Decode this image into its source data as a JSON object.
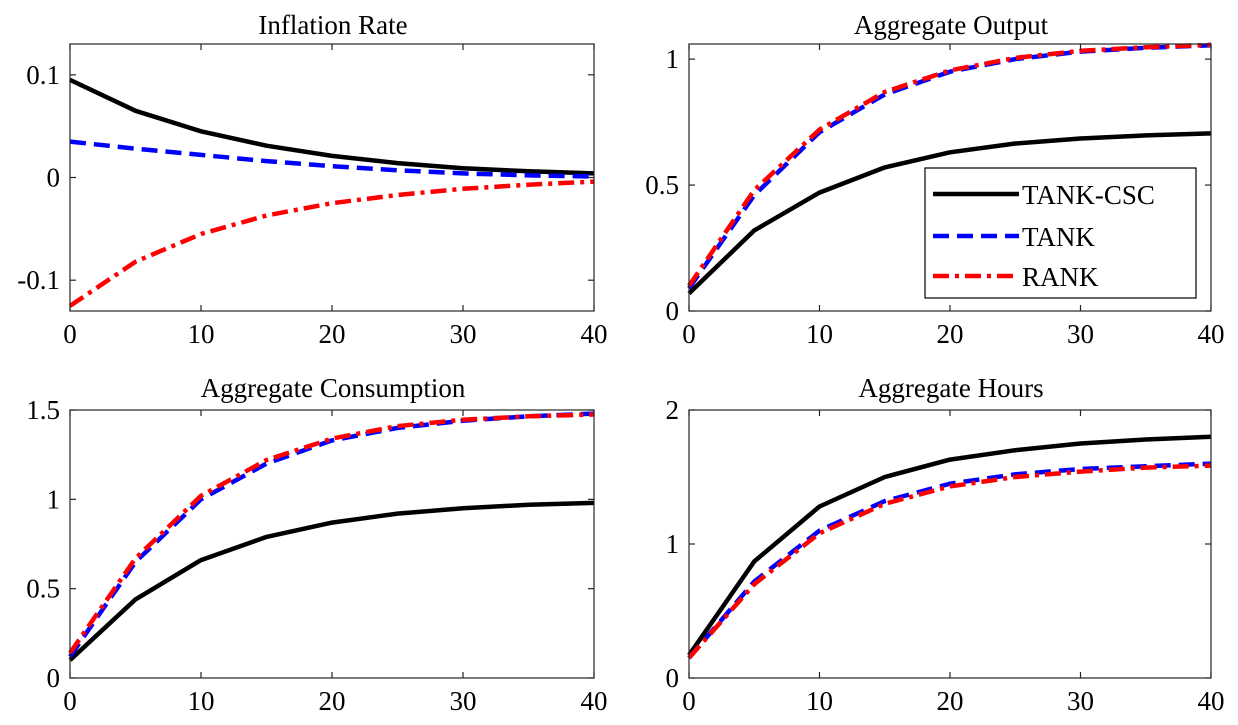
{
  "figure": {
    "background": "#ffffff",
    "legend": {
      "panel": 1,
      "placement": "lower-right",
      "entries": [
        {
          "label": "TANK-CSC",
          "color": "#000000",
          "style": "solid"
        },
        {
          "label": "TANK",
          "color": "#0000ff",
          "style": "dashed"
        },
        {
          "label": "RANK",
          "color": "#ff0000",
          "style": "dash-dot"
        }
      ]
    }
  },
  "chart_data": [
    {
      "type": "line",
      "title": "Inflation Rate",
      "xlabel": "",
      "ylabel": "",
      "xlim": [
        0,
        40
      ],
      "ylim": [
        -0.13,
        0.13
      ],
      "xticks": [
        0,
        10,
        20,
        30,
        40
      ],
      "xtick_labels": [
        "0",
        "10",
        "20",
        "30",
        "40"
      ],
      "yticks": [
        -0.1,
        0,
        0.1
      ],
      "ytick_labels": [
        "-0.1",
        "0",
        "0.1"
      ],
      "grid": false,
      "x": [
        0,
        5,
        10,
        15,
        20,
        25,
        30,
        35,
        40
      ],
      "series": [
        {
          "name": "TANK-CSC",
          "color": "#000000",
          "style": "solid",
          "values": [
            0.095,
            0.065,
            0.045,
            0.031,
            0.021,
            0.014,
            0.009,
            0.006,
            0.004
          ]
        },
        {
          "name": "TANK",
          "color": "#0000ff",
          "style": "dashed",
          "values": [
            0.035,
            0.028,
            0.022,
            0.016,
            0.011,
            0.007,
            0.004,
            0.002,
            0.001
          ]
        },
        {
          "name": "RANK",
          "color": "#ff0000",
          "style": "dash-dot",
          "values": [
            -0.125,
            -0.082,
            -0.055,
            -0.037,
            -0.025,
            -0.017,
            -0.011,
            -0.007,
            -0.004
          ]
        }
      ]
    },
    {
      "type": "line",
      "title": "Aggregate Output",
      "xlabel": "",
      "ylabel": "",
      "xlim": [
        0,
        40
      ],
      "ylim": [
        0,
        1.06
      ],
      "xticks": [
        0,
        10,
        20,
        30,
        40
      ],
      "xtick_labels": [
        "0",
        "10",
        "20",
        "30",
        "40"
      ],
      "yticks": [
        0,
        0.5,
        1
      ],
      "ytick_labels": [
        "0",
        "0.5",
        "1"
      ],
      "grid": false,
      "x": [
        0,
        5,
        10,
        15,
        20,
        25,
        30,
        35,
        40
      ],
      "series": [
        {
          "name": "TANK-CSC",
          "color": "#000000",
          "style": "solid",
          "values": [
            0.07,
            0.32,
            0.47,
            0.57,
            0.63,
            0.665,
            0.685,
            0.697,
            0.705
          ]
        },
        {
          "name": "TANK",
          "color": "#0000ff",
          "style": "dashed",
          "values": [
            0.09,
            0.46,
            0.71,
            0.86,
            0.95,
            1.0,
            1.03,
            1.045,
            1.055
          ]
        },
        {
          "name": "RANK",
          "color": "#ff0000",
          "style": "dash-dot",
          "values": [
            0.1,
            0.48,
            0.72,
            0.87,
            0.955,
            1.005,
            1.033,
            1.047,
            1.057
          ]
        }
      ]
    },
    {
      "type": "line",
      "title": "Aggregate Consumption",
      "xlabel": "",
      "ylabel": "",
      "xlim": [
        0,
        40
      ],
      "ylim": [
        0,
        1.5
      ],
      "xticks": [
        0,
        10,
        20,
        30,
        40
      ],
      "xtick_labels": [
        "0",
        "10",
        "20",
        "30",
        "40"
      ],
      "yticks": [
        0,
        0.5,
        1,
        1.5
      ],
      "ytick_labels": [
        "0",
        "0.5",
        "1",
        "1.5"
      ],
      "grid": false,
      "x": [
        0,
        5,
        10,
        15,
        20,
        25,
        30,
        35,
        40
      ],
      "series": [
        {
          "name": "TANK-CSC",
          "color": "#000000",
          "style": "solid",
          "values": [
            0.1,
            0.44,
            0.66,
            0.79,
            0.87,
            0.92,
            0.95,
            0.97,
            0.98
          ]
        },
        {
          "name": "TANK",
          "color": "#0000ff",
          "style": "dashed",
          "values": [
            0.12,
            0.65,
            1.0,
            1.2,
            1.33,
            1.4,
            1.44,
            1.465,
            1.48
          ]
        },
        {
          "name": "RANK",
          "color": "#ff0000",
          "style": "dash-dot",
          "values": [
            0.14,
            0.67,
            1.02,
            1.22,
            1.34,
            1.41,
            1.445,
            1.465,
            1.475
          ]
        }
      ]
    },
    {
      "type": "line",
      "title": "Aggregate Hours",
      "xlabel": "",
      "ylabel": "",
      "xlim": [
        0,
        40
      ],
      "ylim": [
        0,
        2
      ],
      "xticks": [
        0,
        10,
        20,
        30,
        40
      ],
      "xtick_labels": [
        "0",
        "10",
        "20",
        "30",
        "40"
      ],
      "yticks": [
        0,
        1,
        2
      ],
      "ytick_labels": [
        "0",
        "1",
        "2"
      ],
      "grid": false,
      "x": [
        0,
        5,
        10,
        15,
        20,
        25,
        30,
        35,
        40
      ],
      "series": [
        {
          "name": "TANK-CSC",
          "color": "#000000",
          "style": "solid",
          "values": [
            0.17,
            0.87,
            1.28,
            1.5,
            1.63,
            1.7,
            1.75,
            1.78,
            1.8
          ]
        },
        {
          "name": "TANK",
          "color": "#0000ff",
          "style": "dashed",
          "values": [
            0.15,
            0.72,
            1.1,
            1.32,
            1.45,
            1.52,
            1.56,
            1.58,
            1.6
          ]
        },
        {
          "name": "RANK",
          "color": "#ff0000",
          "style": "dash-dot",
          "values": [
            0.15,
            0.7,
            1.08,
            1.3,
            1.43,
            1.5,
            1.54,
            1.57,
            1.585
          ]
        }
      ]
    }
  ]
}
